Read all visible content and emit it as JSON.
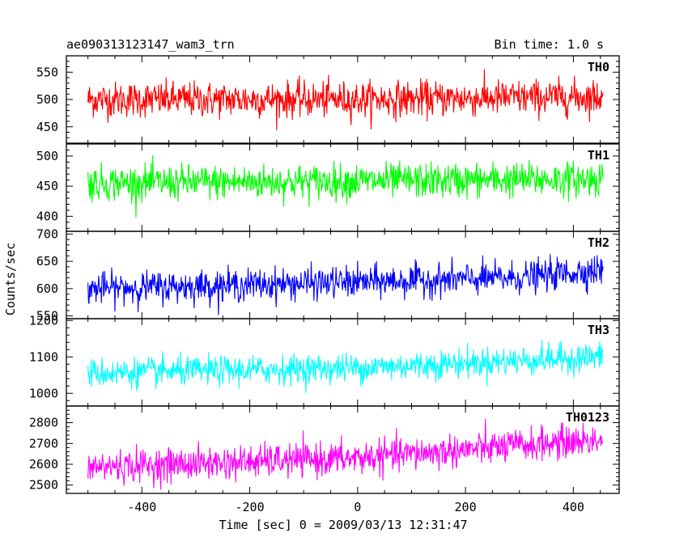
{
  "header": {
    "title": "ae090313123147_wam3_trn",
    "bin_time": "Bin time: 1.0 s"
  },
  "chart_data": {
    "type": "line",
    "title": "ae090313123147_wam3_trn",
    "subtitle": "Bin time: 1.0 s",
    "xlabel": "Time [sec] 0 = 2009/03/13 12:31:47",
    "ylabel": "Counts/sec",
    "xlim": [
      -540,
      485
    ],
    "x_data_range": [
      -500,
      455
    ],
    "x_ticks": [
      -400,
      -200,
      0,
      200,
      400
    ],
    "grid": false,
    "panels": [
      {
        "name": "TH0",
        "color": "#ff0000",
        "ylim": [
          420,
          580
        ],
        "y_ticks": [
          450,
          500,
          550
        ],
        "approx_trend": [
          {
            "x": -500,
            "y": 500
          },
          {
            "x": 0,
            "y": 500
          },
          {
            "x": 455,
            "y": 505
          }
        ],
        "approx_noise_range": 45
      },
      {
        "name": "TH1",
        "color": "#00ff00",
        "ylim": [
          375,
          520
        ],
        "y_ticks": [
          400,
          450,
          500
        ],
        "approx_trend": [
          {
            "x": -500,
            "y": 455
          },
          {
            "x": 0,
            "y": 458
          },
          {
            "x": 455,
            "y": 462
          }
        ],
        "approx_noise_range": 40
      },
      {
        "name": "TH2",
        "color": "#0000ff",
        "ylim": [
          545,
          705
        ],
        "y_ticks": [
          550,
          600,
          650,
          700
        ],
        "approx_trend": [
          {
            "x": -500,
            "y": 600
          },
          {
            "x": 0,
            "y": 612
          },
          {
            "x": 300,
            "y": 620
          },
          {
            "x": 455,
            "y": 635
          }
        ],
        "approx_noise_range": 40
      },
      {
        "name": "TH3",
        "color": "#00ffff",
        "ylim": [
          965,
          1205
        ],
        "y_ticks": [
          1000,
          1100,
          1200
        ],
        "approx_trend": [
          {
            "x": -500,
            "y": 1055
          },
          {
            "x": 0,
            "y": 1070
          },
          {
            "x": 455,
            "y": 1100
          }
        ],
        "approx_noise_range": 55
      },
      {
        "name": "TH0123",
        "color": "#ff00ff",
        "ylim": [
          2460,
          2880
        ],
        "y_ticks": [
          2500,
          2600,
          2700,
          2800
        ],
        "approx_trend": [
          {
            "x": -500,
            "y": 2585
          },
          {
            "x": 0,
            "y": 2630
          },
          {
            "x": 455,
            "y": 2720
          }
        ],
        "approx_noise_range": 110
      }
    ]
  }
}
